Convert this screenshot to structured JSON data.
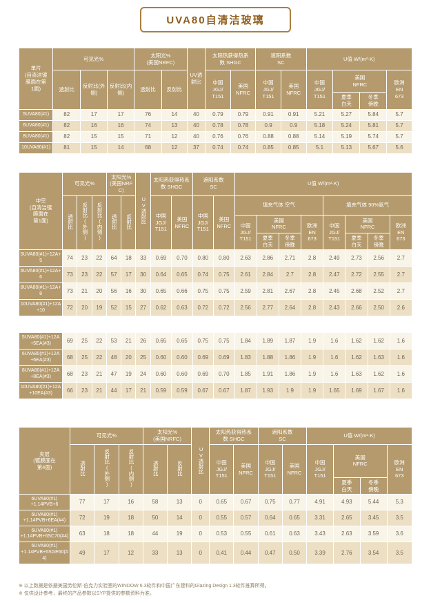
{
  "page": {
    "title": "UVA80自清洁玻璃",
    "notes": [
      "※ 以上数据是依据美国劳伦斯·伯克力实验室的WINDOW 6.3软件和中国广东建科的Glazing Design 1.3软件推算所得。",
      "※ 仅供设计参考，最终的产品参数以SYP提供的参数资料为准。"
    ]
  },
  "labels": {
    "visible_pct": "可见光%",
    "solar_pct": "太阳光%\n(美国NRFC)",
    "uv_trans": "UV透射比",
    "shgc": "太阳热获得热系\n数 SHGC",
    "sc": "遮阳系数\nSC",
    "u_value": "U值 W/(m²·K)",
    "trans": "透射比",
    "refl_out": "反射比(外侧)",
    "refl_in": "反射比(内侧)",
    "refl": "反射比",
    "china_jgj": "中国\nJGJ/\nT151",
    "us_nfrc": "美国\nNFRC",
    "summer_day": "夏季\n白天",
    "winter_evening": "冬季\n傍晚",
    "eu_en673": "欧洲\nEN\n673",
    "fill_air": "填充气体 空气",
    "fill_argon": "填充气体 90%氩气"
  },
  "table1": {
    "corner": "单片\n(自清洁镀\n膜面在第\n1面)",
    "rows": [
      {
        "label": "5UVA80(#1)",
        "values": [
          "82",
          "17",
          "17",
          "76",
          "14",
          "40",
          "0.79",
          "0.79",
          "0.91",
          "0.91",
          "5.21",
          "5.27",
          "5.84",
          "5.7"
        ]
      },
      {
        "label": "6UVA80(#1)",
        "values": [
          "82",
          "16",
          "16",
          "74",
          "13",
          "40",
          "0.78",
          "0.78",
          "0.9",
          "0.9",
          "5.18",
          "5.24",
          "5.81",
          "5.7"
        ]
      },
      {
        "label": "8UVA80(#1)",
        "values": [
          "82",
          "15",
          "15",
          "71",
          "12",
          "40",
          "0.76",
          "0.76",
          "0.88",
          "0.88",
          "5.14",
          "5.19",
          "5.74",
          "5.7"
        ]
      },
      {
        "label": "10UVA80(#1)",
        "values": [
          "81",
          "15",
          "14",
          "68",
          "12",
          "37",
          "0.74",
          "0.74",
          "0.85",
          "0.85",
          "5.1",
          "5.13",
          "5.67",
          "5.6"
        ]
      }
    ]
  },
  "table2": {
    "corner": "中空\n(自清洁镀\n膜面在\n第1面)",
    "rows_a": [
      {
        "label": "5UVA80(#1)+12A+5",
        "values": [
          "74",
          "23",
          "22",
          "64",
          "18",
          "33",
          "0.69",
          "0.70",
          "0.80",
          "0.80",
          "2.63",
          "2.86",
          "2.71",
          "2.8",
          "2.49",
          "2.73",
          "2.56",
          "2.7"
        ]
      },
      {
        "label": "6UVA80(#1)+12A+6",
        "values": [
          "73",
          "23",
          "22",
          "57",
          "17",
          "30",
          "0.64",
          "0.65",
          "0.74",
          "0.75",
          "2.61",
          "2.84",
          "2.7",
          "2.8",
          "2.47",
          "2.72",
          "2.55",
          "2.7"
        ]
      },
      {
        "label": "8UVA80(#1)+12A+8",
        "values": [
          "73",
          "21",
          "20",
          "56",
          "16",
          "30",
          "0.65",
          "0.66",
          "0.75",
          "0.75",
          "2.59",
          "2.81",
          "2.67",
          "2.8",
          "2.45",
          "2.68",
          "2.52",
          "2.7"
        ]
      },
      {
        "label": "10UVA80(#1)+12A\n+10",
        "values": [
          "72",
          "20",
          "19",
          "52",
          "15",
          "27",
          "0.62",
          "0.63",
          "0.72",
          "0.72",
          "2.56",
          "2.77",
          "2.64",
          "2.8",
          "2.43",
          "2.66",
          "2.50",
          "2.6"
        ]
      }
    ],
    "rows_b": [
      {
        "label": "5UVA80(#1)+12A\n+5EA(#3)",
        "values": [
          "69",
          "25",
          "22",
          "53",
          "21",
          "26",
          "0.65",
          "0.65",
          "0.75",
          "0.75",
          "1.84",
          "1.89",
          "1.87",
          "1.9",
          "1.6",
          "1.62",
          "1.62",
          "1.6"
        ]
      },
      {
        "label": "6UVA80(#1)+12A\n+6EA(#3)",
        "values": [
          "68",
          "25",
          "22",
          "48",
          "20",
          "25",
          "0.60",
          "0.60",
          "0.69",
          "0.69",
          "1.83",
          "1.88",
          "1.86",
          "1.9",
          "1.6",
          "1.62",
          "1.63",
          "1.6"
        ]
      },
      {
        "label": "8UVA80(#1)+12A\n+8EA(#3)",
        "values": [
          "68",
          "23",
          "21",
          "47",
          "19",
          "24",
          "0.60",
          "0.60",
          "0.69",
          "0.70",
          "1.85",
          "1.91",
          "1.86",
          "1.9",
          "1.6",
          "1.63",
          "1.62",
          "1.6"
        ]
      },
      {
        "label": "10UVA80(#1)+12A\n+10EA(#3)",
        "values": [
          "66",
          "23",
          "21",
          "44",
          "17",
          "21",
          "0.59",
          "0.59",
          "0.67",
          "0.67",
          "1.87",
          "1.93",
          "1.9",
          "1.9",
          "1.65",
          "1.69",
          "1.67",
          "1.6"
        ]
      }
    ]
  },
  "table3": {
    "corner": "夹层\n(镀膜面在\n第4面)",
    "rows": [
      {
        "label": "6UVA80(#1)\n+1.14PVB+6",
        "values": [
          "77",
          "17",
          "16",
          "58",
          "13",
          "0",
          "0.65",
          "0.67",
          "0.75",
          "0.77",
          "4.91",
          "4.93",
          "5.44",
          "5.3"
        ]
      },
      {
        "label": "6UVA80(#1)\n+1.14PVB+6EA(#4)",
        "values": [
          "72",
          "19",
          "18",
          "50",
          "14",
          "0",
          "0.55",
          "0.57",
          "0.64",
          "0.65",
          "3.31",
          "2.65",
          "3.45",
          "3.5"
        ]
      },
      {
        "label": "6UVA80(#1)\n+1.14PVB+6SC70(#4)",
        "values": [
          "63",
          "18",
          "18",
          "44",
          "19",
          "0",
          "0.53",
          "0.55",
          "0.61",
          "0.63",
          "3.43",
          "2.63",
          "3.59",
          "3.6"
        ]
      },
      {
        "label": "6UVA80(#1)\n+1.14PVB+6SGE60(#4)",
        "values": [
          "49",
          "17",
          "12",
          "33",
          "13",
          "0",
          "0.41",
          "0.44",
          "0.47",
          "0.50",
          "3.39",
          "2.76",
          "3.54",
          "3.5"
        ]
      }
    ]
  }
}
